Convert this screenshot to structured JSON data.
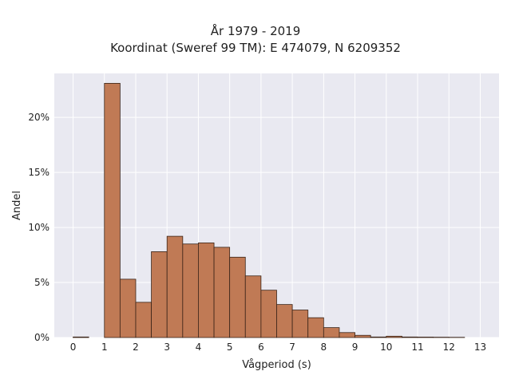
{
  "chart_data": {
    "type": "bar",
    "title_lines": [
      "År 1979 - 2019",
      "Koordinat (Sweref 99 TM): E 474079, N 6209352"
    ],
    "xlabel": "Vågperiod (s)",
    "ylabel": "Andel",
    "xlim": [
      -0.6,
      13.6
    ],
    "ylim": [
      0,
      24
    ],
    "bin_width": 0.5,
    "x_ticks": [
      0,
      1,
      2,
      3,
      4,
      5,
      6,
      7,
      8,
      9,
      10,
      11,
      12,
      13
    ],
    "y_ticks": [
      0,
      5,
      10,
      15,
      20
    ],
    "y_tick_format": "percent",
    "grid": true,
    "colors": {
      "bar_fill": "#c07a55",
      "bar_edge": "#3a2418",
      "plot_bg": "#e9e9f1",
      "grid": "#ffffff"
    },
    "bins": [
      {
        "x0": 0.0,
        "value": 0.05
      },
      {
        "x0": 1.0,
        "value": 23.1
      },
      {
        "x0": 1.5,
        "value": 5.3
      },
      {
        "x0": 2.0,
        "value": 3.2
      },
      {
        "x0": 2.5,
        "value": 7.8
      },
      {
        "x0": 3.0,
        "value": 9.2
      },
      {
        "x0": 3.5,
        "value": 8.5
      },
      {
        "x0": 4.0,
        "value": 8.6
      },
      {
        "x0": 4.5,
        "value": 8.2
      },
      {
        "x0": 5.0,
        "value": 7.3
      },
      {
        "x0": 5.5,
        "value": 5.6
      },
      {
        "x0": 6.0,
        "value": 4.3
      },
      {
        "x0": 6.5,
        "value": 3.0
      },
      {
        "x0": 7.0,
        "value": 2.5
      },
      {
        "x0": 7.5,
        "value": 1.8
      },
      {
        "x0": 8.0,
        "value": 0.9
      },
      {
        "x0": 8.5,
        "value": 0.45
      },
      {
        "x0": 9.0,
        "value": 0.2
      },
      {
        "x0": 9.5,
        "value": 0.05
      },
      {
        "x0": 10.0,
        "value": 0.12
      },
      {
        "x0": 10.5,
        "value": 0.05
      },
      {
        "x0": 11.0,
        "value": 0.04
      },
      {
        "x0": 11.5,
        "value": 0.03
      },
      {
        "x0": 12.0,
        "value": 0.02
      }
    ]
  }
}
